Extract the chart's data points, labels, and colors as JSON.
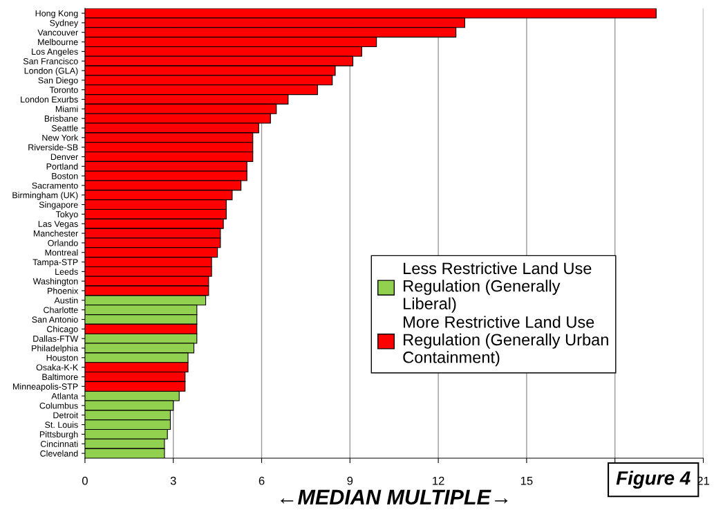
{
  "chart_data": {
    "type": "bar",
    "orientation": "horizontal",
    "stacked": true,
    "xlabel": "←MEDIAN MULTIPLE→",
    "categories": [
      "Hong Kong",
      "Sydney",
      "Vancouver",
      "Melbourne",
      "Los Angeles",
      "San Francisco",
      "London (GLA)",
      "San Diego",
      "Toronto",
      "London Exurbs",
      "Miami",
      "Brisbane",
      "Seattle",
      "New York",
      "Riverside-SB",
      "Denver",
      "Portland",
      "Boston",
      "Sacramento",
      "Birmingham (UK)",
      "Singapore",
      "Tokyo",
      "Las Vegas",
      "Manchester",
      "Orlando",
      "Montreal",
      "Tampa-STP",
      "Leeds",
      "Washington",
      "Phoenix",
      "Austin",
      "Charlotte",
      "San Antonio",
      "Chicago",
      "Dallas-FTW",
      "Philadelphia",
      "Houston",
      "Osaka-K-K",
      "Baltimore",
      "Minneapolis-STP",
      "Atlanta",
      "Columbus",
      "Detroit",
      "St. Louis",
      "Pittsburgh",
      "Cincinnati",
      "Cleveland"
    ],
    "series": [
      {
        "name": "Less Restrictive Land Use Regulation (Generally Liberal)",
        "color": "#92d050",
        "values": [
          null,
          null,
          null,
          null,
          null,
          null,
          null,
          null,
          null,
          null,
          null,
          null,
          null,
          null,
          null,
          null,
          null,
          null,
          null,
          null,
          null,
          null,
          null,
          null,
          null,
          null,
          null,
          null,
          null,
          null,
          4.1,
          3.8,
          3.8,
          null,
          3.8,
          3.7,
          3.5,
          null,
          null,
          null,
          3.2,
          3.0,
          2.9,
          2.9,
          2.8,
          2.7,
          2.7
        ]
      },
      {
        "name": "More Restrictive Land Use Regulation (Generally Urban Containment)",
        "color": "#ff0000",
        "values": [
          19.4,
          12.9,
          12.6,
          9.9,
          9.4,
          9.1,
          8.5,
          8.4,
          7.9,
          6.9,
          6.5,
          6.3,
          5.9,
          5.7,
          5.7,
          5.7,
          5.5,
          5.5,
          5.3,
          5.0,
          4.8,
          4.8,
          4.7,
          4.6,
          4.6,
          4.5,
          4.3,
          4.3,
          4.2,
          4.2,
          null,
          null,
          null,
          3.8,
          null,
          null,
          null,
          3.5,
          3.4,
          3.4,
          null,
          null,
          null,
          null,
          null,
          null,
          null
        ]
      }
    ],
    "xlim": [
      0,
      21
    ],
    "xticks": [
      0,
      3,
      6,
      9,
      12,
      15,
      {
        "value": 18,
        "label": null
      },
      21
    ],
    "grid": "x",
    "legend": "right",
    "annotations": [
      "Figure 4"
    ]
  }
}
